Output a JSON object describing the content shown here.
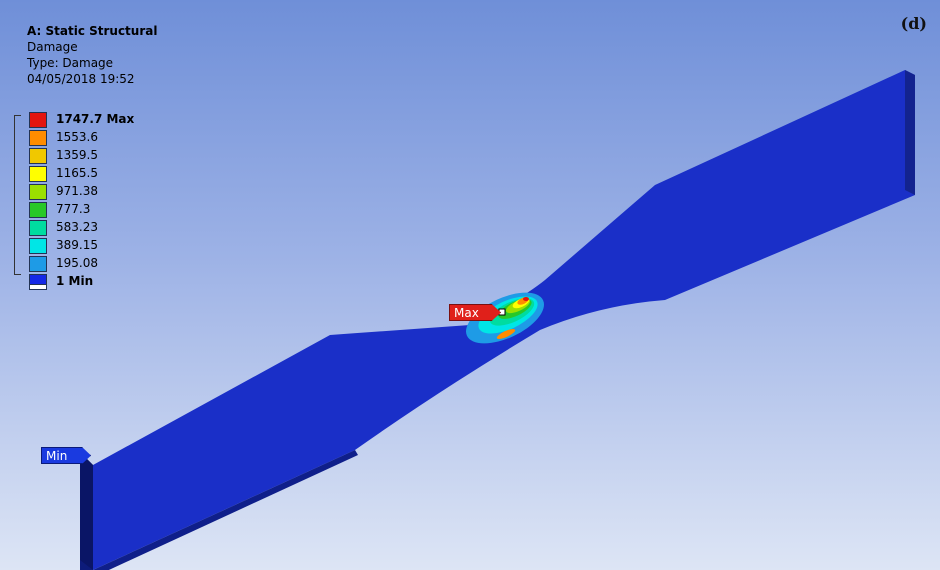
{
  "header": {
    "title": "A: Static Structural",
    "result": "Damage",
    "type": "Type: Damage",
    "timestamp": "04/05/2018 19:52"
  },
  "panel_label": "(d)",
  "legend": {
    "entries": [
      {
        "label": "1747.7 Max",
        "color": "#e3140f",
        "bold": true
      },
      {
        "label": "1553.6",
        "color": "#ff8c00",
        "bold": false
      },
      {
        "label": "1359.5",
        "color": "#f0c800",
        "bold": false
      },
      {
        "label": "1165.5",
        "color": "#ffff00",
        "bold": false
      },
      {
        "label": "971.38",
        "color": "#9be000",
        "bold": false
      },
      {
        "label": "777.3",
        "color": "#28c828",
        "bold": false
      },
      {
        "label": "583.23",
        "color": "#00dca0",
        "bold": false
      },
      {
        "label": "389.15",
        "color": "#00e6e6",
        "bold": false
      },
      {
        "label": "195.08",
        "color": "#1e9be6",
        "bold": false
      },
      {
        "label": "1 Min",
        "color": "#1428e6",
        "bold": true
      }
    ],
    "bottom_swatch_color": "#ffffff"
  },
  "probes": {
    "max_label": "Max",
    "min_label": "Min"
  },
  "colors": {
    "body_top": "#1a2fc8",
    "body_side": "#0f1f8a",
    "body_edge": "#0a1670"
  }
}
